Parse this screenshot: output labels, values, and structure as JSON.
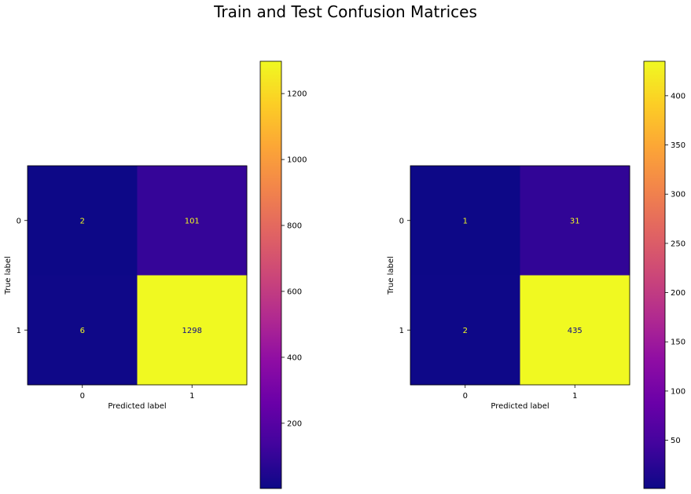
{
  "figure": {
    "title": "Train and Test Confusion Matrices"
  },
  "colormap": {
    "name": "plasma",
    "low_text_color": "#f0f921",
    "high_text_color": "#0d0887"
  },
  "chart_data": [
    {
      "type": "heatmap",
      "title": "",
      "xlabel": "Predicted label",
      "ylabel": "True label",
      "x_categories": [
        "0",
        "1"
      ],
      "y_categories": [
        "0",
        "1"
      ],
      "values": [
        [
          2,
          101
        ],
        [
          6,
          1298
        ]
      ],
      "value_labels": [
        [
          "2",
          "101"
        ],
        [
          "6",
          "1298"
        ]
      ],
      "color_range": [
        2,
        1298
      ],
      "colorbar_ticks": [
        200,
        400,
        600,
        800,
        1000,
        1200
      ],
      "colorbar_tick_labels": [
        "200",
        "400",
        "600",
        "800",
        "1000",
        "1200"
      ],
      "grid": false
    },
    {
      "type": "heatmap",
      "title": "",
      "xlabel": "Predicted label",
      "ylabel": "True label",
      "x_categories": [
        "0",
        "1"
      ],
      "y_categories": [
        "0",
        "1"
      ],
      "values": [
        [
          1,
          31
        ],
        [
          2,
          435
        ]
      ],
      "value_labels": [
        [
          "1",
          "31"
        ],
        [
          "2",
          "435"
        ]
      ],
      "color_range": [
        1,
        435
      ],
      "colorbar_ticks": [
        50,
        100,
        150,
        200,
        250,
        300,
        350,
        400
      ],
      "colorbar_tick_labels": [
        "50",
        "100",
        "150",
        "200",
        "250",
        "300",
        "350",
        "400"
      ],
      "grid": false
    }
  ]
}
